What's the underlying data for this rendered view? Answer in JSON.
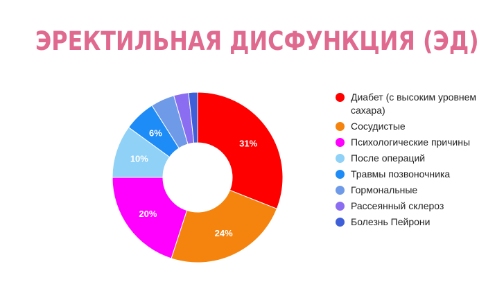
{
  "chart_data": {
    "type": "pie",
    "title": "ЭРЕКТИЛЬНАЯ ДИСФУНКЦИЯ (ЭД)",
    "title_color": "#e06a8f",
    "donut": true,
    "legend_position": "right",
    "slices": [
      {
        "label": "Диабет (с высоким уровнем сахара)",
        "value": 31,
        "data_label": "31%",
        "color": "#ff0000"
      },
      {
        "label": "Сосудистые",
        "value": 24,
        "data_label": "24%",
        "color": "#f4840e"
      },
      {
        "label": "Психологические причины",
        "value": 20,
        "data_label": "20%",
        "color": "#ff00ff"
      },
      {
        "label": "После операций",
        "value": 10,
        "data_label": "10%",
        "color": "#8fd1f7"
      },
      {
        "label": "Травмы позвоночника",
        "value": 6,
        "data_label": "6%",
        "color": "#1e8cf7"
      },
      {
        "label": "Гормональные",
        "value": 4.5,
        "data_label": "",
        "color": "#6f9ae8"
      },
      {
        "label": "Рассеянный склероз",
        "value": 2.8,
        "data_label": "",
        "color": "#8b6df1"
      },
      {
        "label": "Болезнь Пейрони",
        "value": 1.7,
        "data_label": "",
        "color": "#3f5fd9"
      }
    ]
  }
}
